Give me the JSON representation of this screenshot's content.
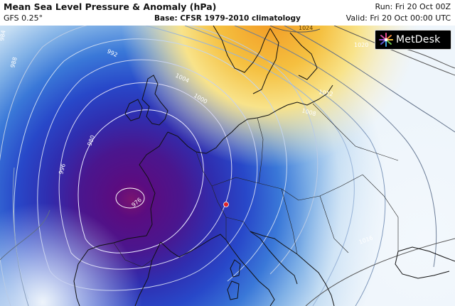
{
  "header": {
    "title": "Mean Sea Level Pressure & Anomaly (hPa)",
    "model": "GFS 0.25°",
    "base": "Base: CFSR 1979-2010 climatology",
    "run": "Run: Fri 20 Oct 00Z",
    "valid": "Valid: Fri 20 Oct 00:00 UTC"
  },
  "logo": {
    "text": "MetDesk",
    "icon": "metdesk-starburst-icon"
  },
  "colors": {
    "deep_low": "#4a0a6a",
    "low_purple": "#5b1b9a",
    "blue_core": "#2440c8",
    "mid_blue": "#3f7fdc",
    "light_blue": "#a9cdee",
    "pale": "#eaf3fb",
    "high_yellow": "#f6d24a",
    "high_orange": "#f3a12b",
    "marker": "#e0242a"
  },
  "isobars": {
    "labels": [
      {
        "value": "984",
        "class": "left-top"
      },
      {
        "value": "988",
        "class": "left"
      },
      {
        "value": "992",
        "class": "north"
      },
      {
        "value": "996",
        "class": "west"
      },
      {
        "value": "1000",
        "class": "north-east"
      },
      {
        "value": "1004",
        "class": "north"
      },
      {
        "value": "1008",
        "class": "east"
      },
      {
        "value": "1012",
        "class": "north-east"
      },
      {
        "value": "1016",
        "class": "south-east"
      },
      {
        "value": "1020",
        "class": "north-east"
      },
      {
        "value": "1024",
        "class": "north"
      },
      {
        "value": "980",
        "class": "inner"
      },
      {
        "value": "976",
        "class": "core"
      }
    ]
  }
}
